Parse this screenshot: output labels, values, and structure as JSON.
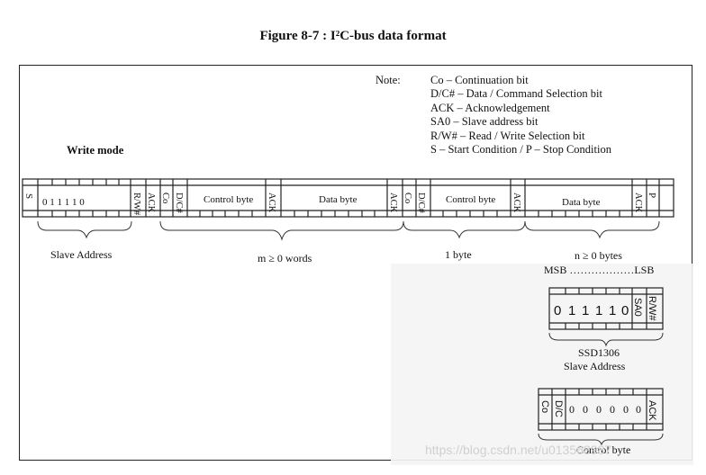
{
  "figure": {
    "title": "Figure 8-7 : I²C-bus data format"
  },
  "note": {
    "label": "Note:",
    "items": [
      "Co – Continuation bit",
      "D/C# – Data / Command Selection bit",
      "ACK – Acknowledgement",
      "SA0 – Slave address bit",
      "R/W# – Read / Write Selection bit",
      "S – Start Condition / P – Stop Condition"
    ]
  },
  "mode": {
    "label": "Write mode"
  },
  "bits": {
    "s": "S",
    "slave_bits": "0 1 1 1 1 0",
    "rw": "R/W#",
    "ack": "ACK",
    "co": "Co",
    "dc": "D/C#",
    "p": "P"
  },
  "fields": {
    "control_byte": "Control byte",
    "data_byte": "Data byte"
  },
  "braces": {
    "slave_address": "Slave Address",
    "m_words": "m ≥ 0 words",
    "one_byte": "1 byte",
    "n_bytes": "n ≥ 0 bytes"
  },
  "detail": {
    "msb_lsb": "MSB ………………LSB",
    "slave_bits": [
      "0",
      "1",
      "1",
      "1",
      "1",
      "0"
    ],
    "sa0": "SA0",
    "rw": "R/W#",
    "device": "SSD1306",
    "device_sub": "Slave Address",
    "control_bits": [
      "0",
      "0",
      "0",
      "0",
      "0",
      "0"
    ],
    "co": "Co",
    "dc": "D/C",
    "ack": "ACK",
    "control_caption": "Control byte"
  },
  "watermark": "https://blog.csdn.net/u013568987"
}
